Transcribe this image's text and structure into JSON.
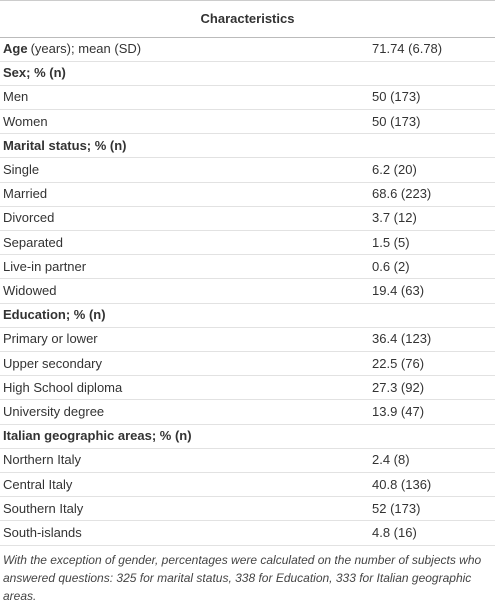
{
  "header": {
    "title": "Characteristics"
  },
  "table": {
    "rows": [
      {
        "heading": "Age",
        "label": "(years); mean (SD)",
        "value": "71.74 (6.78)"
      },
      {
        "heading": "Sex; % (n)"
      },
      {
        "label": "Men",
        "value": "50 (173)"
      },
      {
        "label": "Women",
        "value": "50 (173)"
      },
      {
        "heading": "Marital status; % (n)"
      },
      {
        "label": "Single",
        "value": "6.2 (20)"
      },
      {
        "label": "Married",
        "value": "68.6 (223)"
      },
      {
        "label": "Divorced",
        "value": "3.7 (12)"
      },
      {
        "label": "Separated",
        "value": "1.5 (5)"
      },
      {
        "label": "Live-in partner",
        "value": "0.6 (2)"
      },
      {
        "label": "Widowed",
        "value": "19.4 (63)"
      },
      {
        "heading": "Education; % (n)"
      },
      {
        "label": "Primary or lower",
        "value": "36.4 (123)"
      },
      {
        "label": "Upper secondary",
        "value": "22.5 (76)"
      },
      {
        "label": "High School diploma",
        "value": "27.3 (92)"
      },
      {
        "label": "University degree",
        "value": "13.9 (47)"
      },
      {
        "heading": "Italian geographic areas; % (n)"
      },
      {
        "label": "Northern Italy",
        "value": "2.4 (8)"
      },
      {
        "label": "Central Italy",
        "value": "40.8 (136)"
      },
      {
        "label": "Southern Italy",
        "value": "52 (173)"
      },
      {
        "label": "South-islands",
        "value": "4.8 (16)"
      }
    ]
  },
  "footnote": "With the exception of gender, percentages were calculated on the number of subjects who answered questions: 325 for marital status, 338 for Education, 333 for Italian geographic areas."
}
